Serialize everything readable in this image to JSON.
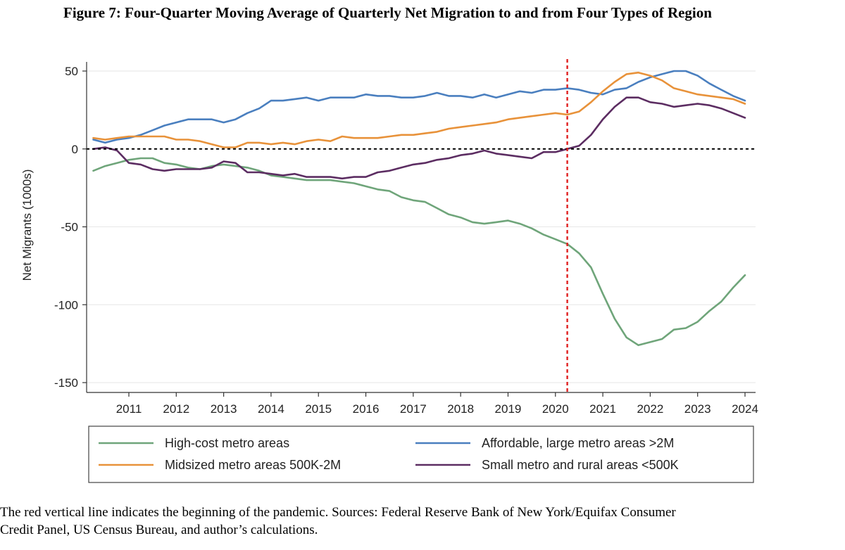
{
  "title": "Figure 7: Four-Quarter Moving Average of Quarterly Net Migration to and from Four Types of Region",
  "caption_line1": "The red vertical line indicates the beginning of the pandemic. Sources: Federal Reserve Bank of New York/Equifax Consumer",
  "caption_line2": "Credit Panel, US Census Bureau, and author’s calculations.",
  "chart_data": {
    "type": "line",
    "title": "Figure 7: Four-Quarter Moving Average of Quarterly Net Migration to and from Four Types of Region",
    "xlabel": "",
    "ylabel": "Net Migrants (1000s)",
    "ylim": [
      -150,
      50
    ],
    "yticks": [
      50,
      0,
      -50,
      -100,
      -150
    ],
    "ytick_labels": [
      "50",
      "0",
      "-50",
      "-100",
      "-150"
    ],
    "xlim": [
      2010.25,
      2024.0
    ],
    "xticks": [
      2011,
      2012,
      2013,
      2014,
      2015,
      2016,
      2017,
      2018,
      2019,
      2020,
      2021,
      2022,
      2023,
      2024
    ],
    "xtick_labels": [
      "2011",
      "2012",
      "2013",
      "2014",
      "2015",
      "2016",
      "2017",
      "2018",
      "2019",
      "2020",
      "2021",
      "2022",
      "2023",
      "2024"
    ],
    "pandemic_line_x": 2020.25,
    "zero_line": 0,
    "x": [
      2010.25,
      2010.5,
      2010.75,
      2011.0,
      2011.25,
      2011.5,
      2011.75,
      2012.0,
      2012.25,
      2012.5,
      2012.75,
      2013.0,
      2013.25,
      2013.5,
      2013.75,
      2014.0,
      2014.25,
      2014.5,
      2014.75,
      2015.0,
      2015.25,
      2015.5,
      2015.75,
      2016.0,
      2016.25,
      2016.5,
      2016.75,
      2017.0,
      2017.25,
      2017.5,
      2017.75,
      2018.0,
      2018.25,
      2018.5,
      2018.75,
      2019.0,
      2019.25,
      2019.5,
      2019.75,
      2020.0,
      2020.25,
      2020.5,
      2020.75,
      2021.0,
      2021.25,
      2021.5,
      2021.75,
      2022.0,
      2022.25,
      2022.5,
      2022.75,
      2023.0,
      2023.25,
      2023.5,
      2023.75,
      2024.0
    ],
    "series": [
      {
        "name": "High-cost metro areas",
        "color": "#6fa57a",
        "values": [
          -14,
          -11,
          -9,
          -7,
          -6,
          -6,
          -9,
          -10,
          -12,
          -13,
          -11,
          -10,
          -11,
          -12,
          -14,
          -17,
          -18,
          -19,
          -20,
          -20,
          -20,
          -21,
          -22,
          -24,
          -26,
          -27,
          -31,
          -33,
          -34,
          -38,
          -42,
          -44,
          -47,
          -48,
          -47,
          -46,
          -48,
          -51,
          -55,
          -58,
          -61,
          -67,
          -76,
          -93,
          -109,
          -121,
          -126,
          -124,
          -122,
          -116,
          -115,
          -111,
          -104,
          -98,
          -89,
          -81
        ]
      },
      {
        "name": "Affordable, large metro areas >2M",
        "color": "#4a7fbf",
        "values": [
          6,
          4,
          6,
          7,
          9,
          12,
          15,
          17,
          19,
          19,
          19,
          17,
          19,
          23,
          26,
          31,
          31,
          32,
          33,
          31,
          33,
          33,
          33,
          35,
          34,
          34,
          33,
          33,
          34,
          36,
          34,
          34,
          33,
          35,
          33,
          35,
          37,
          36,
          38,
          38,
          39,
          38,
          36,
          35,
          38,
          39,
          43,
          46,
          48,
          50,
          50,
          47,
          42,
          38,
          34,
          31
        ]
      },
      {
        "name": "Midsized metro areas 500K-2M",
        "color": "#e8923a",
        "values": [
          7,
          6,
          7,
          8,
          8,
          8,
          8,
          6,
          6,
          5,
          3,
          1,
          1,
          4,
          4,
          3,
          4,
          3,
          5,
          6,
          5,
          8,
          7,
          7,
          7,
          8,
          9,
          9,
          10,
          11,
          13,
          14,
          15,
          16,
          17,
          19,
          20,
          21,
          22,
          23,
          22,
          24,
          30,
          37,
          43,
          48,
          49,
          47,
          44,
          39,
          37,
          35,
          34,
          33,
          32,
          29
        ]
      },
      {
        "name": "Small metro and rural areas <500K",
        "color": "#5c2d62",
        "values": [
          0,
          1,
          -1,
          -9,
          -10,
          -13,
          -14,
          -13,
          -13,
          -13,
          -12,
          -8,
          -9,
          -15,
          -15,
          -16,
          -17,
          -16,
          -18,
          -18,
          -18,
          -19,
          -18,
          -18,
          -15,
          -14,
          -12,
          -10,
          -9,
          -7,
          -6,
          -4,
          -3,
          -1,
          -3,
          -4,
          -5,
          -6,
          -2,
          -2,
          0,
          2,
          9,
          19,
          27,
          33,
          33,
          30,
          29,
          27,
          28,
          29,
          28,
          26,
          23,
          20
        ]
      }
    ],
    "legend": {
      "position": "bottom",
      "columns": 2,
      "entries": [
        "High-cost metro areas",
        "Affordable, large metro areas >2M",
        "Midsized metro areas 500K-2M",
        "Small metro and rural areas <500K"
      ]
    }
  }
}
